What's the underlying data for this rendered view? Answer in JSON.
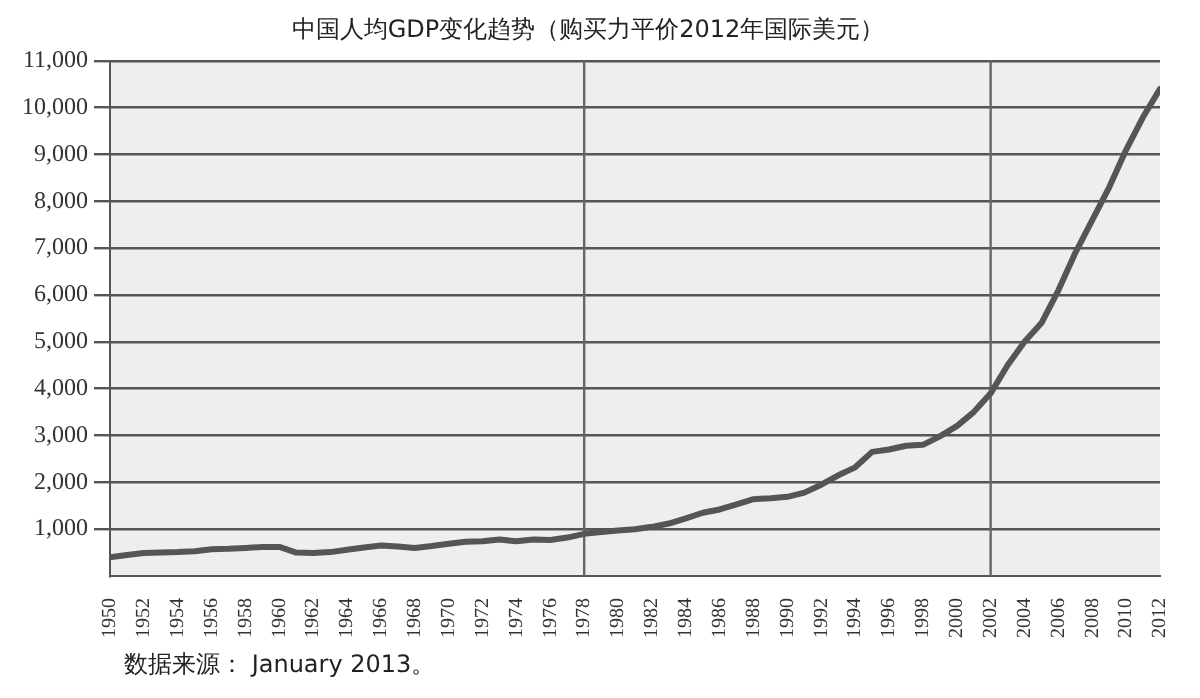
{
  "chart_data": {
    "type": "line",
    "title": "中国人均GDP变化趋势（购买力平价2012年国际美元）",
    "x": [
      1950,
      1951,
      1952,
      1953,
      1954,
      1955,
      1956,
      1957,
      1958,
      1959,
      1960,
      1961,
      1962,
      1963,
      1964,
      1965,
      1966,
      1967,
      1968,
      1969,
      1970,
      1971,
      1972,
      1973,
      1974,
      1975,
      1976,
      1977,
      1978,
      1979,
      1980,
      1981,
      1982,
      1983,
      1984,
      1985,
      1986,
      1987,
      1988,
      1989,
      1990,
      1991,
      1992,
      1993,
      1994,
      1995,
      1996,
      1997,
      1998,
      1999,
      2000,
      2001,
      2002,
      2003,
      2004,
      2005,
      2006,
      2007,
      2008,
      2009,
      2010,
      2011,
      2012
    ],
    "series": [
      {
        "color": "#555555",
        "values": [
          400,
          450,
          490,
          500,
          510,
          530,
          570,
          580,
          600,
          620,
          620,
          500,
          490,
          510,
          560,
          610,
          650,
          630,
          600,
          640,
          690,
          730,
          740,
          780,
          740,
          780,
          770,
          820,
          900,
          940,
          970,
          1000,
          1050,
          1120,
          1230,
          1350,
          1420,
          1530,
          1640,
          1660,
          1690,
          1780,
          1950,
          2150,
          2320,
          2650,
          2700,
          2780,
          2800,
          2980,
          3200,
          3500,
          3900,
          4500,
          5000,
          5400,
          6100,
          6900,
          7600,
          8300,
          9100,
          9800,
          10400
        ]
      }
    ],
    "xlim": [
      1950,
      2012
    ],
    "xticks": [
      1950,
      1952,
      1954,
      1956,
      1958,
      1960,
      1962,
      1964,
      1966,
      1968,
      1970,
      1972,
      1974,
      1976,
      1978,
      1980,
      1982,
      1984,
      1986,
      1988,
      1990,
      1992,
      1994,
      1996,
      1998,
      2000,
      2002,
      2004,
      2006,
      2008,
      2010,
      2012
    ],
    "ylim": [
      0,
      11000
    ],
    "yticks": [
      {
        "value": 1000,
        "label": "1,000"
      },
      {
        "value": 2000,
        "label": "2,000"
      },
      {
        "value": 3000,
        "label": "3,000"
      },
      {
        "value": 4000,
        "label": "4,000"
      },
      {
        "value": 5000,
        "label": "5,000"
      },
      {
        "value": 6000,
        "label": "6,000"
      },
      {
        "value": 7000,
        "label": "7,000"
      },
      {
        "value": 8000,
        "label": "8,000"
      },
      {
        "value": 9000,
        "label": "9,000"
      },
      {
        "value": 10000,
        "label": "10,000"
      },
      {
        "value": 11000,
        "label": "11,000"
      }
    ],
    "ref_lines": [
      {
        "axis": "x",
        "value": 1978,
        "color": "#666666"
      },
      {
        "axis": "x",
        "value": 2002,
        "color": "#666666"
      }
    ],
    "grid": "y",
    "marker": "none",
    "line_style": "solid",
    "annotations": [
      "数据来源： January 2013。"
    ]
  }
}
